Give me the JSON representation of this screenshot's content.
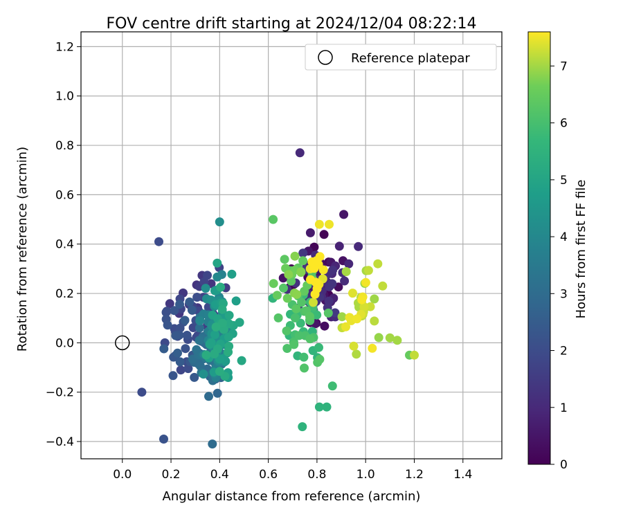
{
  "chart_data": {
    "type": "scatter",
    "title": "FOV centre drift starting at 2024/12/04 08:22:14",
    "xlabel": "Angular distance from reference (arcmin)",
    "ylabel": "Rotation from reference (arcmin)",
    "xlim": [
      -0.17,
      1.56
    ],
    "ylim": [
      -0.47,
      1.26
    ],
    "xticks": [
      "0.0",
      "0.2",
      "0.4",
      "0.6",
      "0.8",
      "1.0",
      "1.2",
      "1.4"
    ],
    "yticks": [
      "−0.4",
      "−0.2",
      "0.0",
      "0.2",
      "0.4",
      "0.6",
      "0.8",
      "1.0",
      "1.2"
    ],
    "grid": true,
    "legend": {
      "placement": "top-right",
      "entries": [
        "Reference platepar"
      ]
    },
    "colorbar": {
      "label": "Hours from first FF file",
      "range": [
        0,
        7.6
      ],
      "ticks": [
        "0",
        "1",
        "2",
        "3",
        "4",
        "5",
        "6",
        "7"
      ],
      "colormap": "viridis"
    },
    "reference_point": {
      "x": 0.0,
      "y": 0.0
    },
    "approx_point_count": 420,
    "groups": [
      {
        "hours": 0.3,
        "x_center": 0.79,
        "x_spread": 0.1,
        "y_center": 0.25,
        "y_spread": 0.16,
        "count": 40
      },
      {
        "hours": 1.1,
        "x_center": 0.82,
        "x_spread": 0.1,
        "y_center": 0.22,
        "y_spread": 0.18,
        "count": 45
      },
      {
        "hours": 1.6,
        "x_center": 0.33,
        "x_spread": 0.1,
        "y_center": 0.16,
        "y_spread": 0.12,
        "count": 30
      },
      {
        "hours": 2.2,
        "x_center": 0.26,
        "x_spread": 0.09,
        "y_center": 0.02,
        "y_spread": 0.17,
        "count": 45
      },
      {
        "hours": 3.0,
        "x_center": 0.35,
        "x_spread": 0.06,
        "y_center": -0.05,
        "y_spread": 0.15,
        "count": 60
      },
      {
        "hours": 4.0,
        "x_center": 0.38,
        "x_spread": 0.05,
        "y_center": 0.05,
        "y_spread": 0.18,
        "count": 60
      },
      {
        "hours": 5.0,
        "x_center": 0.41,
        "x_spread": 0.06,
        "y_center": 0.06,
        "y_spread": 0.19,
        "count": 45
      },
      {
        "hours": 5.9,
        "x_center": 0.75,
        "x_spread": 0.1,
        "y_center": 0.08,
        "y_spread": 0.2,
        "count": 45
      },
      {
        "hours": 6.5,
        "x_center": 0.72,
        "x_spread": 0.08,
        "y_center": 0.25,
        "y_spread": 0.13,
        "count": 25
      },
      {
        "hours": 7.2,
        "x_center": 0.98,
        "x_spread": 0.1,
        "y_center": 0.15,
        "y_spread": 0.17,
        "count": 30
      },
      {
        "hours": 7.5,
        "x_center": 0.8,
        "x_spread": 0.04,
        "y_center": 0.3,
        "y_spread": 0.12,
        "count": 15
      }
    ],
    "notable_points": [
      {
        "x": 0.73,
        "y": 0.77,
        "hours": 1.0
      },
      {
        "x": 0.17,
        "y": -0.39,
        "hours": 2.2
      },
      {
        "x": 0.37,
        "y": -0.41,
        "hours": 3.0
      },
      {
        "x": 1.2,
        "y": -0.05,
        "hours": 7.2
      },
      {
        "x": 1.18,
        "y": -0.05,
        "hours": 6.5
      },
      {
        "x": 0.62,
        "y": 0.5,
        "hours": 6.3
      },
      {
        "x": 0.4,
        "y": 0.49,
        "hours": 4.2
      },
      {
        "x": 0.74,
        "y": -0.34,
        "hours": 5.5
      },
      {
        "x": 0.84,
        "y": -0.26,
        "hours": 5.5
      },
      {
        "x": 0.81,
        "y": -0.26,
        "hours": 5.5
      },
      {
        "x": 1.1,
        "y": 0.02,
        "hours": 7.0
      },
      {
        "x": 1.13,
        "y": 0.01,
        "hours": 7.0
      },
      {
        "x": 0.08,
        "y": -0.2,
        "hours": 2.0
      },
      {
        "x": 0.15,
        "y": 0.41,
        "hours": 2.0
      },
      {
        "x": 0.91,
        "y": 0.52,
        "hours": 0.5
      },
      {
        "x": 0.97,
        "y": 0.39,
        "hours": 1.0
      },
      {
        "x": 1.05,
        "y": 0.32,
        "hours": 7.2
      },
      {
        "x": 1.07,
        "y": 0.23,
        "hours": 7.2
      },
      {
        "x": 0.85,
        "y": 0.48,
        "hours": 7.5
      },
      {
        "x": 0.81,
        "y": 0.48,
        "hours": 7.5
      }
    ]
  }
}
